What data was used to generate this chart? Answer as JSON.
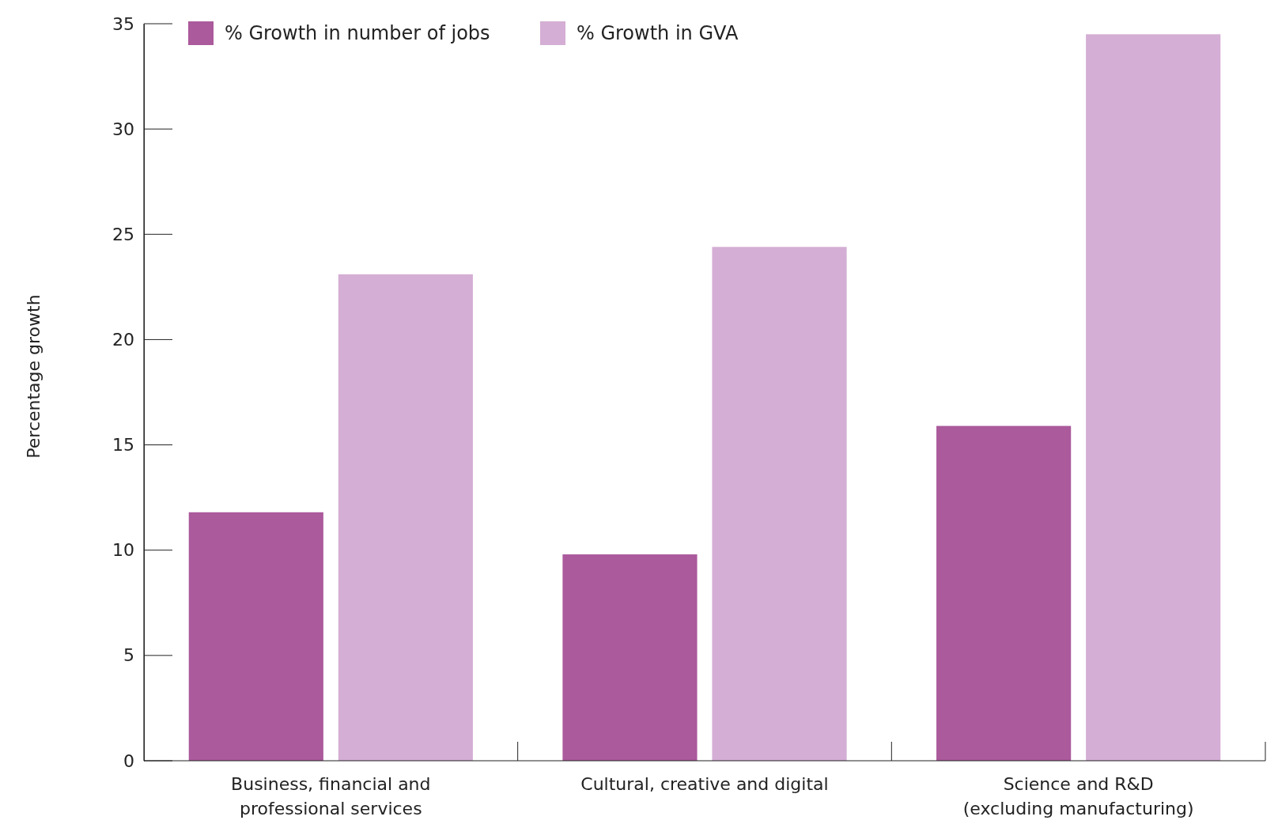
{
  "chart_data": {
    "type": "bar",
    "ylabel": "Percentage growth",
    "categories": [
      "Business, financial and\nprofessional services",
      "Cultural, creative and digital",
      "Science and R&D\n(excluding manufacturing)"
    ],
    "series": [
      {
        "name": "% Growth in number of jobs",
        "color": "#ab5a9c",
        "values": [
          11.8,
          9.8,
          15.9
        ]
      },
      {
        "name": "% Growth in GVA",
        "color": "#d4aed4",
        "values": [
          23.1,
          24.4,
          34.5
        ]
      }
    ],
    "ylim": [
      0,
      35
    ],
    "yticks": [
      0,
      5,
      10,
      15,
      20,
      25,
      30,
      35
    ],
    "grid": false,
    "legend": "top left"
  }
}
